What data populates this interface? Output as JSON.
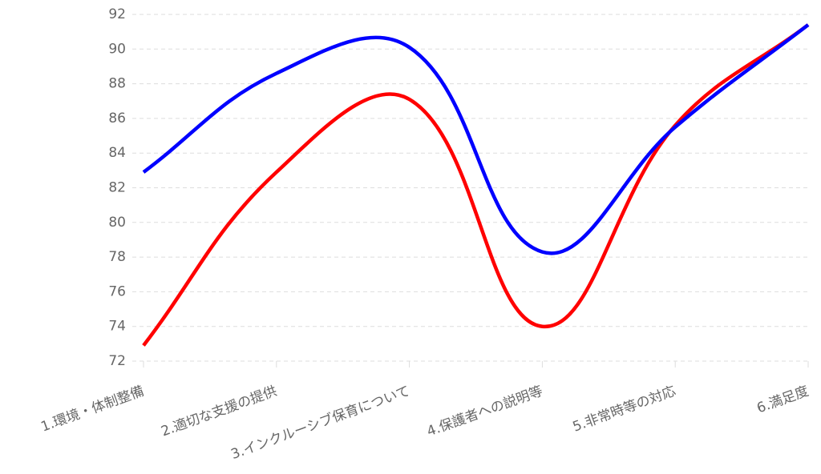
{
  "chart_data": {
    "type": "line",
    "categories": [
      "1.環境・体制整備",
      "2.適切な支援の提供",
      "3.インクルーシブ保育について",
      "4.保護者への説明等",
      "5.非常時等の対応",
      "6.満足度"
    ],
    "series": [
      {
        "color": "#ff0000",
        "values": [
          72.9,
          82.9,
          87.1,
          74.0,
          85.6,
          91.4
        ]
      },
      {
        "color": "#0000ff",
        "values": [
          82.9,
          88.6,
          90.1,
          78.3,
          85.5,
          91.4
        ]
      }
    ],
    "ylim": [
      72,
      92
    ],
    "yticks": [
      72,
      74,
      76,
      78,
      80,
      82,
      84,
      86,
      88,
      90,
      92
    ],
    "grid": true
  }
}
